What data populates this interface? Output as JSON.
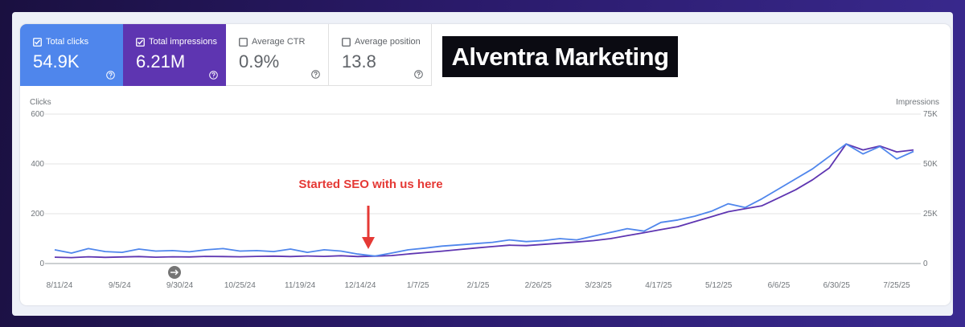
{
  "metrics": [
    {
      "label": "Total clicks",
      "value": "54.9K",
      "selected": true
    },
    {
      "label": "Total impressions",
      "value": "6.21M",
      "selected": true
    },
    {
      "label": "Average CTR",
      "value": "0.9%",
      "selected": false
    },
    {
      "label": "Average position",
      "value": "13.8",
      "selected": false
    }
  ],
  "logo": "Alventra Marketing",
  "chart_data": {
    "type": "line",
    "annotation": "Started SEO with us here",
    "x": [
      "8/9/24",
      "8/16/24",
      "8/23/24",
      "8/30/24",
      "9/6/24",
      "9/13/24",
      "9/20/24",
      "9/27/24",
      "10/4/24",
      "10/11/24",
      "10/18/24",
      "10/25/24",
      "11/1/24",
      "11/8/24",
      "11/15/24",
      "11/22/24",
      "11/29/24",
      "12/6/24",
      "12/13/24",
      "12/20/24",
      "12/27/24",
      "1/3/25",
      "1/10/25",
      "1/17/25",
      "1/24/25",
      "1/31/25",
      "2/7/25",
      "2/14/25",
      "2/21/25",
      "2/28/25",
      "3/7/25",
      "3/14/25",
      "3/21/25",
      "3/28/25",
      "4/4/25",
      "4/11/25",
      "4/18/25",
      "4/25/25",
      "5/2/25",
      "5/9/25",
      "5/16/25",
      "5/23/25",
      "5/30/25",
      "6/6/25",
      "6/13/25",
      "6/20/25",
      "6/27/25",
      "7/4/25",
      "7/11/25",
      "7/18/25",
      "7/25/25",
      "8/1/25"
    ],
    "xticks": [
      "8/11/24",
      "9/5/24",
      "9/30/24",
      "10/25/24",
      "11/19/24",
      "12/14/24",
      "1/7/25",
      "2/1/25",
      "2/26/25",
      "3/23/25",
      "4/17/25",
      "5/12/25",
      "6/6/25",
      "6/30/25",
      "7/25/25"
    ],
    "series": [
      {
        "name": "Clicks",
        "color": "#4f86ec",
        "axis": "y",
        "values": [
          55,
          42,
          60,
          48,
          45,
          58,
          50,
          52,
          47,
          55,
          60,
          50,
          52,
          48,
          58,
          45,
          55,
          50,
          38,
          30,
          42,
          55,
          62,
          70,
          75,
          80,
          85,
          95,
          88,
          92,
          100,
          95,
          110,
          125,
          140,
          130,
          165,
          175,
          190,
          210,
          240,
          225,
          260,
          300,
          340,
          380,
          430,
          480,
          440,
          470,
          420,
          450
        ]
      },
      {
        "name": "Impressions",
        "color": "#5e35b1",
        "axis": "y2",
        "values": [
          3200,
          3000,
          3400,
          3100,
          3300,
          3500,
          3200,
          3400,
          3300,
          3600,
          3500,
          3400,
          3600,
          3700,
          3500,
          3800,
          3600,
          3900,
          3500,
          3700,
          4000,
          4800,
          5500,
          6200,
          7000,
          7800,
          8500,
          9200,
          9000,
          9600,
          10200,
          10800,
          11500,
          12500,
          14000,
          15500,
          17000,
          18500,
          21000,
          23500,
          26000,
          27500,
          29000,
          33000,
          37000,
          42000,
          48000,
          60000,
          57000,
          59000,
          56000,
          57000
        ]
      }
    ],
    "ylim": [
      0,
      600
    ],
    "yticks": [
      0,
      200,
      400,
      600
    ],
    "y2lim": [
      0,
      75000
    ],
    "y2ticks": [
      0,
      {
        "value": 25000,
        "label": "25K"
      },
      {
        "value": 50000,
        "label": "50K"
      },
      {
        "value": 75000,
        "label": "75K"
      }
    ],
    "grid": true
  }
}
